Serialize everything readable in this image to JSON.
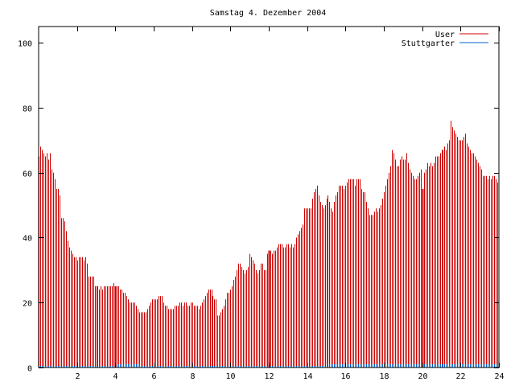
{
  "chart_data": {
    "type": "bar",
    "title": "Samstag 4. Dezember 2004",
    "xlabel": "",
    "ylabel": "",
    "xlim": [
      0,
      24
    ],
    "ylim": [
      0,
      105
    ],
    "xticks": [
      "2",
      "4",
      "6",
      "8",
      "10",
      "12",
      "14",
      "16",
      "18",
      "20",
      "22",
      "24"
    ],
    "yticks": [
      "0",
      "20",
      "40",
      "60",
      "80",
      "100"
    ],
    "grid": false,
    "legend_position": "top-right",
    "series": [
      {
        "name": "User",
        "color": "#cc0000",
        "bar_interval_minutes": 5,
        "values": [
          65,
          68,
          67,
          66,
          65,
          66,
          64,
          66,
          61,
          60,
          58,
          55,
          55,
          53,
          46,
          46,
          45,
          42,
          39,
          37,
          36,
          35,
          34,
          34,
          33,
          34,
          34,
          34,
          33,
          34,
          32,
          28,
          28,
          28,
          28,
          25,
          25,
          25,
          24,
          25,
          24,
          25,
          25,
          25,
          25,
          25,
          25,
          26,
          25,
          25,
          25,
          24,
          24,
          23,
          23,
          22,
          21,
          20,
          20,
          20,
          20,
          19,
          18,
          17,
          17,
          17,
          17,
          17,
          18,
          19,
          20,
          21,
          21,
          21,
          21,
          22,
          22,
          22,
          20,
          19,
          19,
          18,
          18,
          18,
          18,
          19,
          19,
          19,
          20,
          20,
          19,
          20,
          20,
          19,
          19,
          20,
          20,
          19,
          19,
          19,
          18,
          19,
          20,
          21,
          22,
          23,
          24,
          24,
          24,
          22,
          21,
          21,
          16,
          16,
          17,
          18,
          19,
          21,
          23,
          23,
          24,
          25,
          27,
          28,
          30,
          32,
          32,
          31,
          30,
          29,
          30,
          31,
          35,
          34,
          33,
          32,
          30,
          29,
          30,
          32,
          32,
          30,
          30,
          35,
          36,
          36,
          35,
          36,
          36,
          37,
          38,
          38,
          38,
          37,
          37,
          38,
          38,
          37,
          38,
          37,
          38,
          40,
          41,
          42,
          43,
          44,
          49,
          49,
          49,
          49,
          49,
          52,
          54,
          55,
          56,
          53,
          51,
          50,
          49,
          50,
          52,
          53,
          51,
          49,
          48,
          51,
          53,
          54,
          56,
          56,
          56,
          55,
          56,
          57,
          58,
          58,
          58,
          58,
          56,
          58,
          58,
          58,
          55,
          54,
          54,
          51,
          49,
          47,
          47,
          47,
          48,
          49,
          48,
          49,
          50,
          52,
          54,
          56,
          58,
          60,
          62,
          67,
          66,
          64,
          62,
          62,
          64,
          65,
          64,
          64,
          66,
          63,
          61,
          60,
          59,
          58,
          58,
          59,
          60,
          61,
          55,
          60,
          61,
          63,
          62,
          63,
          62,
          63,
          65,
          65,
          65,
          66,
          67,
          67,
          68,
          67,
          69,
          70,
          76,
          74,
          73,
          72,
          71,
          70,
          70,
          70,
          71,
          72,
          69,
          68,
          67,
          66,
          66,
          65,
          64,
          63,
          62,
          61,
          59,
          59,
          59,
          58,
          59,
          58,
          59,
          59,
          58,
          57
        ]
      },
      {
        "name": "Stuttgarter",
        "color": "#0066cc",
        "bar_interval_minutes": 5,
        "values": [
          0.5,
          0.5,
          0.5,
          0.5,
          0.5,
          0.5,
          0.5,
          0.5,
          0.5,
          0.5,
          0.5,
          0.5,
          0.5,
          0.5,
          0.5,
          0.5,
          0.5,
          0.5,
          0.5,
          0.5,
          0.5,
          0.5,
          0.5,
          0.5,
          0.5,
          0.5,
          0.5,
          0.5,
          0.5,
          0.5,
          0.5,
          0.5,
          0.5,
          0.5,
          0.5,
          0.5,
          0.5,
          0.5,
          0.5,
          0.5,
          0.5,
          0.5,
          0.5,
          0.5,
          0.5,
          0.5,
          0.5,
          0.5,
          1,
          1,
          1,
          1,
          1,
          1,
          1,
          1,
          1,
          1,
          1,
          1,
          1,
          1,
          1,
          1,
          0.5,
          0.5,
          0.5,
          0.5,
          0.5,
          0.5,
          0.5,
          0.5,
          0.5,
          0.5,
          0.5,
          0.5,
          0.5,
          0.5,
          0.5,
          0.5,
          0.5,
          0.5,
          0.5,
          0.5,
          0.5,
          0.5,
          0.5,
          0.5,
          0.5,
          0.5,
          0.5,
          0.5,
          0.5,
          0.5,
          0.5,
          0.5,
          0.5,
          0.5,
          0.5,
          0.5,
          0.5,
          0.5,
          0.5,
          0.5,
          0.5,
          0.5,
          0.5,
          0.5,
          0.5,
          0.5,
          0.5,
          0.5,
          0.5,
          0.5,
          0.5,
          0.5,
          0.5,
          0.5,
          0.5,
          0.5,
          0.5,
          0.5,
          0.5,
          0.5,
          0.5,
          0.5,
          0.5,
          0.5,
          0.5,
          0.5,
          0.5,
          0.5,
          0.5,
          0.5,
          0.5,
          0.5,
          0.5,
          0.5,
          0.5,
          0.5,
          0.5,
          0.5,
          0.5,
          0.5,
          0.5,
          0.5,
          0.5,
          0.5,
          0.5,
          0.5,
          0.5,
          0.5,
          0.5,
          0.5,
          0.5,
          0.5,
          0.5,
          0.5,
          0.5,
          0.5,
          0.5,
          0.5,
          0.5,
          0.5,
          0.5,
          0.5,
          0.5,
          0.5,
          0.5,
          0.5,
          0.5,
          0.5,
          0.5,
          0.5,
          0.5,
          0.5,
          0.5,
          0.5,
          0.5,
          0.5,
          1,
          1,
          1,
          1,
          1,
          1,
          1,
          1,
          1,
          1,
          1,
          1,
          1,
          1,
          1,
          1,
          1,
          1,
          1,
          1,
          1,
          1,
          1,
          1,
          1,
          1,
          1,
          1,
          1,
          1,
          1,
          1,
          1,
          1,
          1,
          1,
          1,
          1,
          1,
          1,
          1,
          1,
          1,
          1,
          1,
          1,
          1,
          1,
          1,
          1,
          1,
          1,
          1,
          1,
          1,
          1,
          1,
          1,
          1,
          1,
          1,
          1,
          1,
          1,
          1,
          1,
          1,
          1,
          1,
          1,
          1,
          1,
          1,
          1,
          1,
          1,
          1,
          1,
          1,
          1,
          1,
          1,
          1,
          1,
          1,
          1,
          1,
          1,
          1,
          1,
          1,
          1,
          1,
          1,
          1,
          1,
          1,
          1,
          1,
          1,
          1,
          1,
          1,
          1,
          1,
          1,
          1,
          1
        ]
      }
    ],
    "highlight_hours": [
      4,
      12,
      20
    ],
    "highlight_values": [
      25,
      36,
      55
    ]
  }
}
